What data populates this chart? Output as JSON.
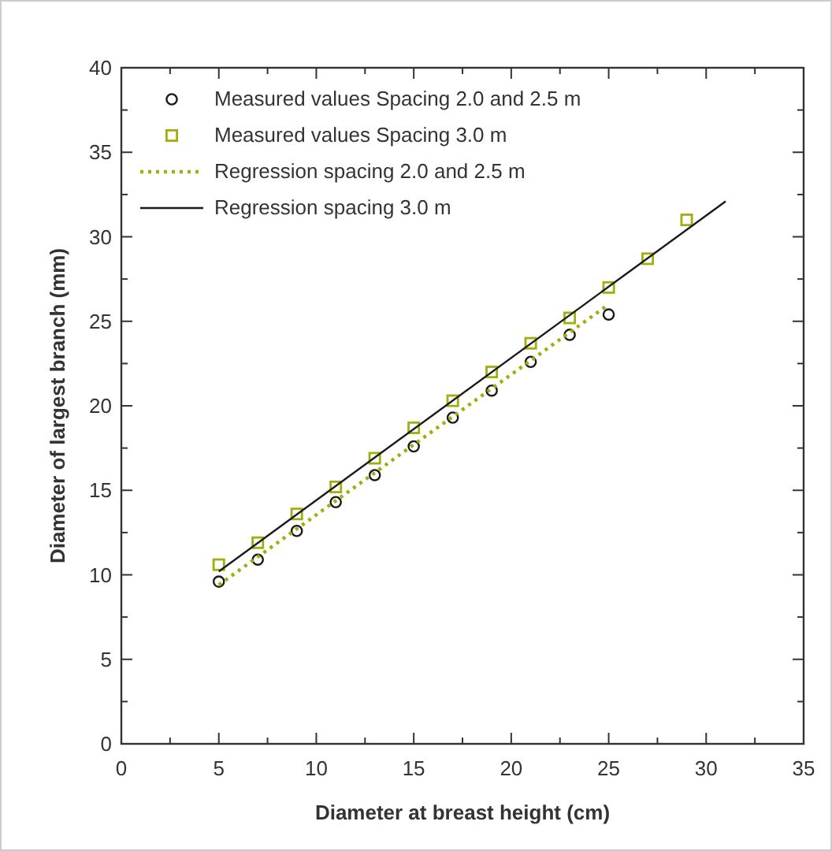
{
  "chart_data": {
    "type": "scatter",
    "xlabel": "Diameter at breast height (cm)",
    "ylabel": "Diameter of largest branch (mm)",
    "xlim": [
      0,
      35
    ],
    "ylim": [
      0,
      40
    ],
    "xticks": [
      0,
      {
        "value": 2.5,
        "label": null
      },
      5,
      {
        "value": 7.5,
        "label": null
      },
      10,
      {
        "value": 12.5,
        "label": null
      },
      15,
      {
        "value": 17.5,
        "label": null
      },
      20,
      {
        "value": 22.5,
        "label": null
      },
      25,
      {
        "value": 27.5,
        "label": null
      },
      30,
      {
        "value": 32.5,
        "label": null
      },
      35
    ],
    "yticks": [
      0,
      {
        "value": 2.5,
        "label": null
      },
      5,
      {
        "value": 7.5,
        "label": null
      },
      10,
      {
        "value": 12.5,
        "label": null
      },
      15,
      {
        "value": 17.5,
        "label": null
      },
      20,
      {
        "value": 22.5,
        "label": null
      },
      25,
      {
        "value": 27.5,
        "label": null
      },
      30,
      {
        "value": 32.5,
        "label": null
      },
      35,
      {
        "value": 37.5,
        "label": null
      },
      40
    ],
    "grid": false,
    "legend": "top left",
    "series": [
      {
        "name": "Measured values Spacing 2.0 and 2.5 m",
        "marker": "circle",
        "color": "#1a1a1a",
        "x": [
          5,
          7,
          9,
          11,
          13,
          15,
          17,
          19,
          21,
          23,
          25
        ],
        "values": [
          9.6,
          10.9,
          12.6,
          14.3,
          15.9,
          17.6,
          19.3,
          20.9,
          22.6,
          24.2,
          25.4
        ]
      },
      {
        "name": "Measured values Spacing 3.0 m",
        "marker": "square",
        "color": "#a3ad10",
        "x": [
          5,
          7,
          9,
          11,
          13,
          15,
          17,
          19,
          21,
          23,
          25,
          27,
          29
        ],
        "values": [
          10.6,
          11.9,
          13.6,
          15.2,
          16.9,
          18.7,
          20.3,
          22.0,
          23.7,
          25.2,
          27.0,
          28.7,
          31.0
        ]
      },
      {
        "name": "Regression spacing 2.0 and 2.5 m",
        "type": "line",
        "line_style": "dotted",
        "color": "#a3ad10",
        "x": [
          5,
          25
        ],
        "values": [
          9.4,
          26.0
        ]
      },
      {
        "name": "Regression spacing 3.0 m",
        "type": "line",
        "line_style": "solid",
        "color": "#1a1a1a",
        "x": [
          5,
          31
        ],
        "values": [
          10.2,
          32.1
        ]
      }
    ]
  }
}
